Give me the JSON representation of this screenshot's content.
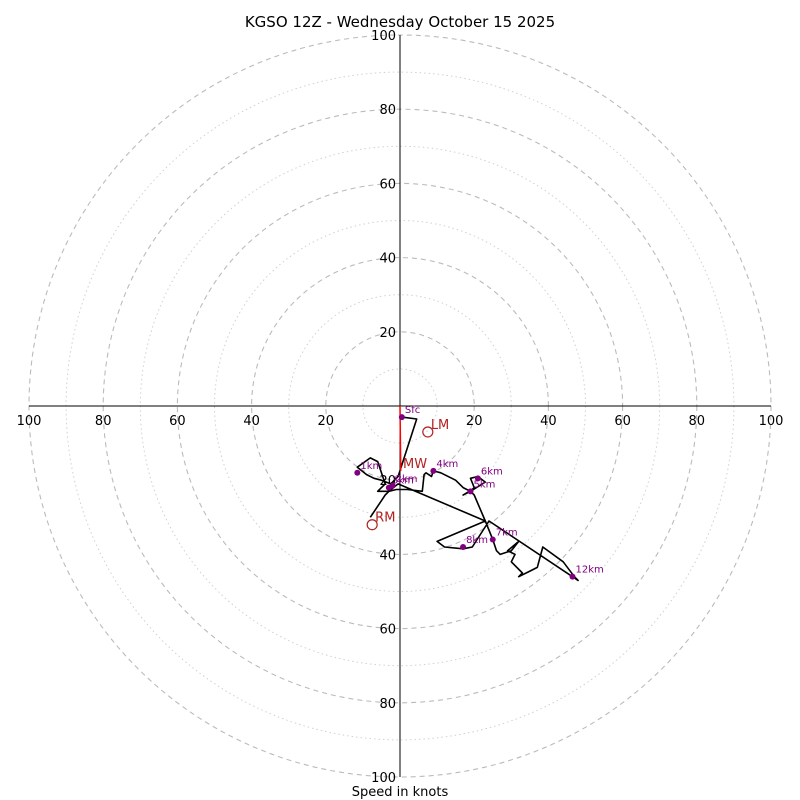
{
  "chart_data": {
    "type": "hodograph",
    "title": "KGSO 12Z - Wednesday October 15 2025",
    "xlabel": "Speed in knots",
    "range": [
      -100,
      100
    ],
    "ring_step_major": 20,
    "ring_step_minor": 10,
    "tick_labels_x": [
      "100",
      "80",
      "60",
      "40",
      "20",
      "20",
      "40",
      "60",
      "80",
      "100"
    ],
    "tick_labels_y_up": [
      "20",
      "40",
      "60",
      "80",
      "100"
    ],
    "tick_labels_y_down": [
      "20",
      "40",
      "60",
      "80",
      "100"
    ],
    "x_tick_values": [
      -100,
      -80,
      -60,
      -40,
      -20,
      20,
      40,
      60,
      80,
      100
    ],
    "y_tick_values_up": [
      20,
      40,
      60,
      80,
      100
    ],
    "y_tick_values_down": [
      -20,
      -40,
      -60,
      -80,
      -100
    ],
    "hodograph_uv": [
      [
        0.5,
        -3
      ],
      [
        4.5,
        -3.5
      ],
      [
        -0.5,
        -19
      ],
      [
        -2.5,
        -21
      ],
      [
        -5,
        -20
      ],
      [
        -7,
        -19.5
      ],
      [
        -9,
        -18.5
      ],
      [
        -11.5,
        -16.5
      ],
      [
        -8,
        -14
      ],
      [
        -6,
        -15
      ],
      [
        -4,
        -21
      ],
      [
        -6,
        -23
      ],
      [
        -3,
        -23
      ],
      [
        -1,
        -22.5
      ],
      [
        2,
        -22.5
      ],
      [
        6,
        -23
      ],
      [
        6.5,
        -18.5
      ],
      [
        7,
        -18
      ],
      [
        8.5,
        -19
      ],
      [
        9,
        -17.5
      ],
      [
        11,
        -18
      ],
      [
        15,
        -20
      ],
      [
        17,
        -22
      ],
      [
        19,
        -23
      ],
      [
        17,
        -24
      ],
      [
        19.5,
        -22.5
      ],
      [
        20,
        -22
      ],
      [
        19,
        -19.5
      ],
      [
        21,
        -19
      ],
      [
        23,
        -20.5
      ],
      [
        19,
        -23
      ],
      [
        20,
        -24
      ],
      [
        23,
        -31
      ],
      [
        25,
        -36
      ],
      [
        26,
        -39
      ],
      [
        27,
        -40
      ],
      [
        30,
        -39
      ],
      [
        32,
        -36.5
      ],
      [
        29,
        -39
      ],
      [
        31,
        -40
      ],
      [
        30,
        -42
      ],
      [
        33,
        -45
      ],
      [
        32,
        -46
      ],
      [
        35,
        -44.5
      ],
      [
        37,
        -43.5
      ],
      [
        38.5,
        -38
      ],
      [
        44,
        -42
      ],
      [
        47,
        -46
      ],
      [
        48,
        -47
      ],
      [
        24,
        -31
      ],
      [
        19.5,
        -38
      ],
      [
        17,
        -38.5
      ],
      [
        12,
        -38
      ],
      [
        10,
        -36.5
      ],
      [
        23,
        -31
      ],
      [
        -0.5,
        -21
      ],
      [
        -3,
        -23
      ],
      [
        -4,
        -24
      ],
      [
        -8,
        -30
      ]
    ],
    "km_markers": [
      {
        "label": "Sfc",
        "u": 0.5,
        "v": -3
      },
      {
        "label": "1km",
        "u": -11.5,
        "v": -18
      },
      {
        "label": "2km",
        "u": -2,
        "v": -21.5
      },
      {
        "label": "3km",
        "u": -3,
        "v": -22
      },
      {
        "label": "4km",
        "u": 9,
        "v": -17.5
      },
      {
        "label": "5km",
        "u": 19,
        "v": -23
      },
      {
        "label": "6km",
        "u": 21,
        "v": -19.5
      },
      {
        "label": "7km",
        "u": 25,
        "v": -36
      },
      {
        "label": "8km",
        "u": 17,
        "v": -38
      },
      {
        "label": "12km",
        "u": 46.5,
        "v": -46
      }
    ],
    "motion_markers": [
      {
        "label": "LM",
        "u": 7.5,
        "v": -7
      },
      {
        "label": "RM",
        "u": -7.5,
        "v": -32
      },
      {
        "label": "MW",
        "u": 0,
        "v": -17.5
      }
    ],
    "mean_wind_vector": {
      "u0": 0,
      "v0": 0,
      "u1": 0.2,
      "v1": -17.5
    }
  },
  "colors": {
    "hodograph": "#000000",
    "km_marker": "#800080",
    "motion": "#b22222",
    "mean_wind": "#ff0000",
    "ring": "#bbbbbb",
    "axis": "#000000"
  }
}
